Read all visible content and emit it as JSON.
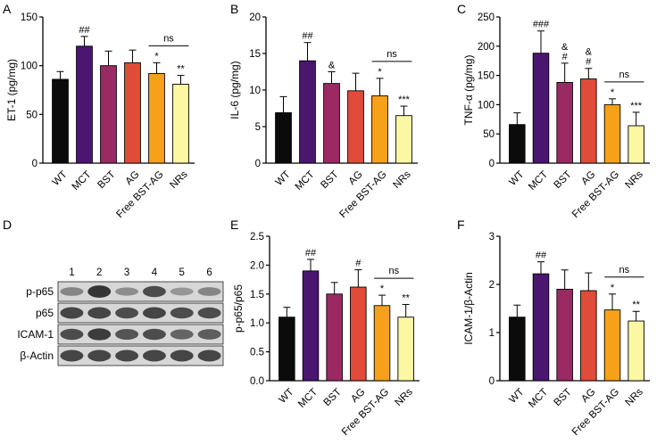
{
  "figure": {
    "panels": [
      {
        "letter": "A"
      },
      {
        "letter": "B"
      },
      {
        "letter": "C"
      },
      {
        "letter": "D"
      },
      {
        "letter": "E"
      },
      {
        "letter": "F"
      }
    ]
  },
  "western_blot": {
    "lanes": [
      "1",
      "2",
      "3",
      "4",
      "5",
      "6"
    ],
    "rows": [
      {
        "label": "p-p65",
        "intensity": [
          0.45,
          0.95,
          0.4,
          0.8,
          0.35,
          0.45
        ]
      },
      {
        "label": "p65",
        "intensity": [
          0.85,
          0.85,
          0.8,
          0.85,
          0.8,
          0.8
        ]
      },
      {
        "label": "ICAM-1",
        "intensity": [
          0.8,
          0.9,
          0.75,
          0.8,
          0.65,
          0.7
        ]
      },
      {
        "label": "β-Actin",
        "intensity": [
          0.85,
          0.85,
          0.85,
          0.85,
          0.85,
          0.85
        ]
      }
    ]
  },
  "colors": {
    "WT": "#0b0b0b",
    "MCT": "#4a1670",
    "BST": "#9b2a63",
    "AG": "#e04b3a",
    "Free BST-AG": "#f7a11a",
    "NRs": "#fbf7a3"
  },
  "chart_data": [
    {
      "type": "bar",
      "panel": "A",
      "categories": [
        "WT",
        "MCT",
        "BST",
        "AG",
        "Free BST-AG",
        "NRs"
      ],
      "values": [
        86,
        120,
        100,
        103,
        92,
        81
      ],
      "errors": [
        8,
        10,
        15,
        13,
        11,
        9
      ],
      "ylabel": "ET-1 (pg/mg)",
      "ylim": [
        0,
        150
      ],
      "yticks": [
        0,
        50,
        100,
        150
      ],
      "annotations": [
        "",
        "##",
        "",
        "",
        "*",
        "**"
      ],
      "comparison": {
        "from": 4,
        "to": 5,
        "label": "ns"
      }
    },
    {
      "type": "bar",
      "panel": "B",
      "categories": [
        "WT",
        "MCT",
        "BST",
        "AG",
        "Free BST-AG",
        "NRs"
      ],
      "values": [
        6.9,
        14.0,
        10.9,
        9.9,
        9.2,
        6.5
      ],
      "errors": [
        2.2,
        2.5,
        1.6,
        2.4,
        2.4,
        1.3
      ],
      "ylabel": "IL-6 (pg/mg)",
      "ylim": [
        0,
        20
      ],
      "yticks": [
        0,
        5,
        10,
        15,
        20
      ],
      "annotations": [
        "",
        "##",
        "&",
        "",
        "*",
        "***"
      ],
      "comparison": {
        "from": 4,
        "to": 5,
        "label": "ns"
      }
    },
    {
      "type": "bar",
      "panel": "C",
      "categories": [
        "WT",
        "MCT",
        "BST",
        "AG",
        "Free BST-AG",
        "NRs"
      ],
      "values": [
        66,
        188,
        138,
        144,
        100,
        64
      ],
      "errors": [
        20,
        38,
        33,
        18,
        10,
        23
      ],
      "ylabel": "TNF-α (pg/mg)",
      "ylim": [
        0,
        250
      ],
      "yticks": [
        0,
        50,
        100,
        150,
        200,
        250
      ],
      "annotations": [
        "",
        "###",
        "&\n#",
        "&\n#",
        "*",
        "***"
      ],
      "comparison": {
        "from": 4,
        "to": 5,
        "label": "ns"
      }
    },
    {
      "type": "bar",
      "panel": "E",
      "categories": [
        "WT",
        "MCT",
        "BST",
        "AG",
        "Free BST-AG",
        "NRs"
      ],
      "values": [
        1.1,
        1.9,
        1.5,
        1.62,
        1.3,
        1.1
      ],
      "errors": [
        0.17,
        0.2,
        0.2,
        0.3,
        0.18,
        0.22
      ],
      "ylabel": "p-p65/p65",
      "ylim": [
        0,
        2.5
      ],
      "yticks": [
        "0.0",
        "0.5",
        "1.0",
        "1.5",
        "2.0",
        "2.5"
      ],
      "annotations": [
        "",
        "##",
        "",
        "#",
        "*",
        "**"
      ],
      "comparison": {
        "from": 4,
        "to": 5,
        "label": "ns"
      }
    },
    {
      "type": "bar",
      "panel": "F",
      "categories": [
        "WT",
        "MCT",
        "BST",
        "AG",
        "Free BST-AG",
        "NRs"
      ],
      "values": [
        1.32,
        2.22,
        1.9,
        1.87,
        1.47,
        1.24
      ],
      "errors": [
        0.25,
        0.25,
        0.4,
        0.37,
        0.33,
        0.2
      ],
      "ylabel": "ICAM-1/β-Actin",
      "ylim": [
        0,
        3
      ],
      "yticks": [
        0,
        1,
        2,
        3
      ],
      "annotations": [
        "",
        "##",
        "",
        "",
        "*",
        "**"
      ],
      "comparison": {
        "from": 4,
        "to": 5,
        "label": "ns"
      }
    }
  ]
}
